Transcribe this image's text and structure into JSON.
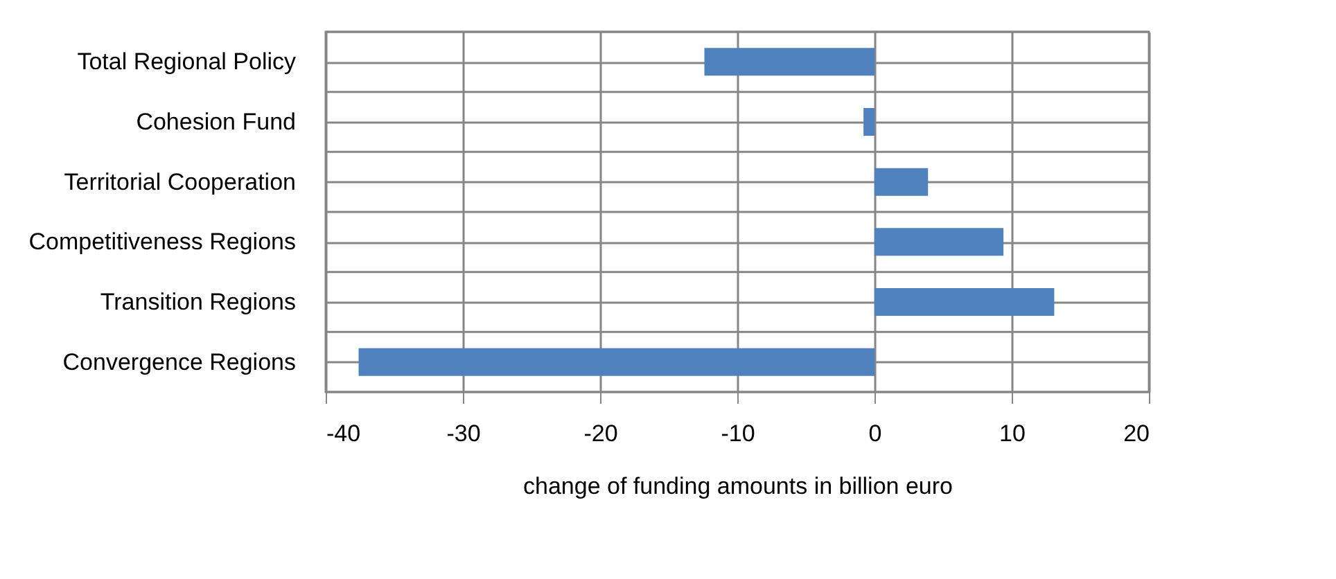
{
  "chart_data": {
    "type": "bar",
    "orientation": "horizontal",
    "xlabel": "change of funding amounts in billion euro",
    "categories": [
      "Total Regional Policy",
      "Cohesion Fund",
      "Territorial Cooperation",
      "Competitiveness Regions",
      "Transition Regions",
      "Convergence Regions"
    ],
    "values": [
      -12.4,
      -0.8,
      3.9,
      9.4,
      13.1,
      -37.6
    ],
    "color": "#4f81bd",
    "xlim": [
      -40,
      20
    ],
    "xticks": [
      -40,
      -30,
      -20,
      -10,
      0,
      10,
      20
    ],
    "grid": true
  }
}
